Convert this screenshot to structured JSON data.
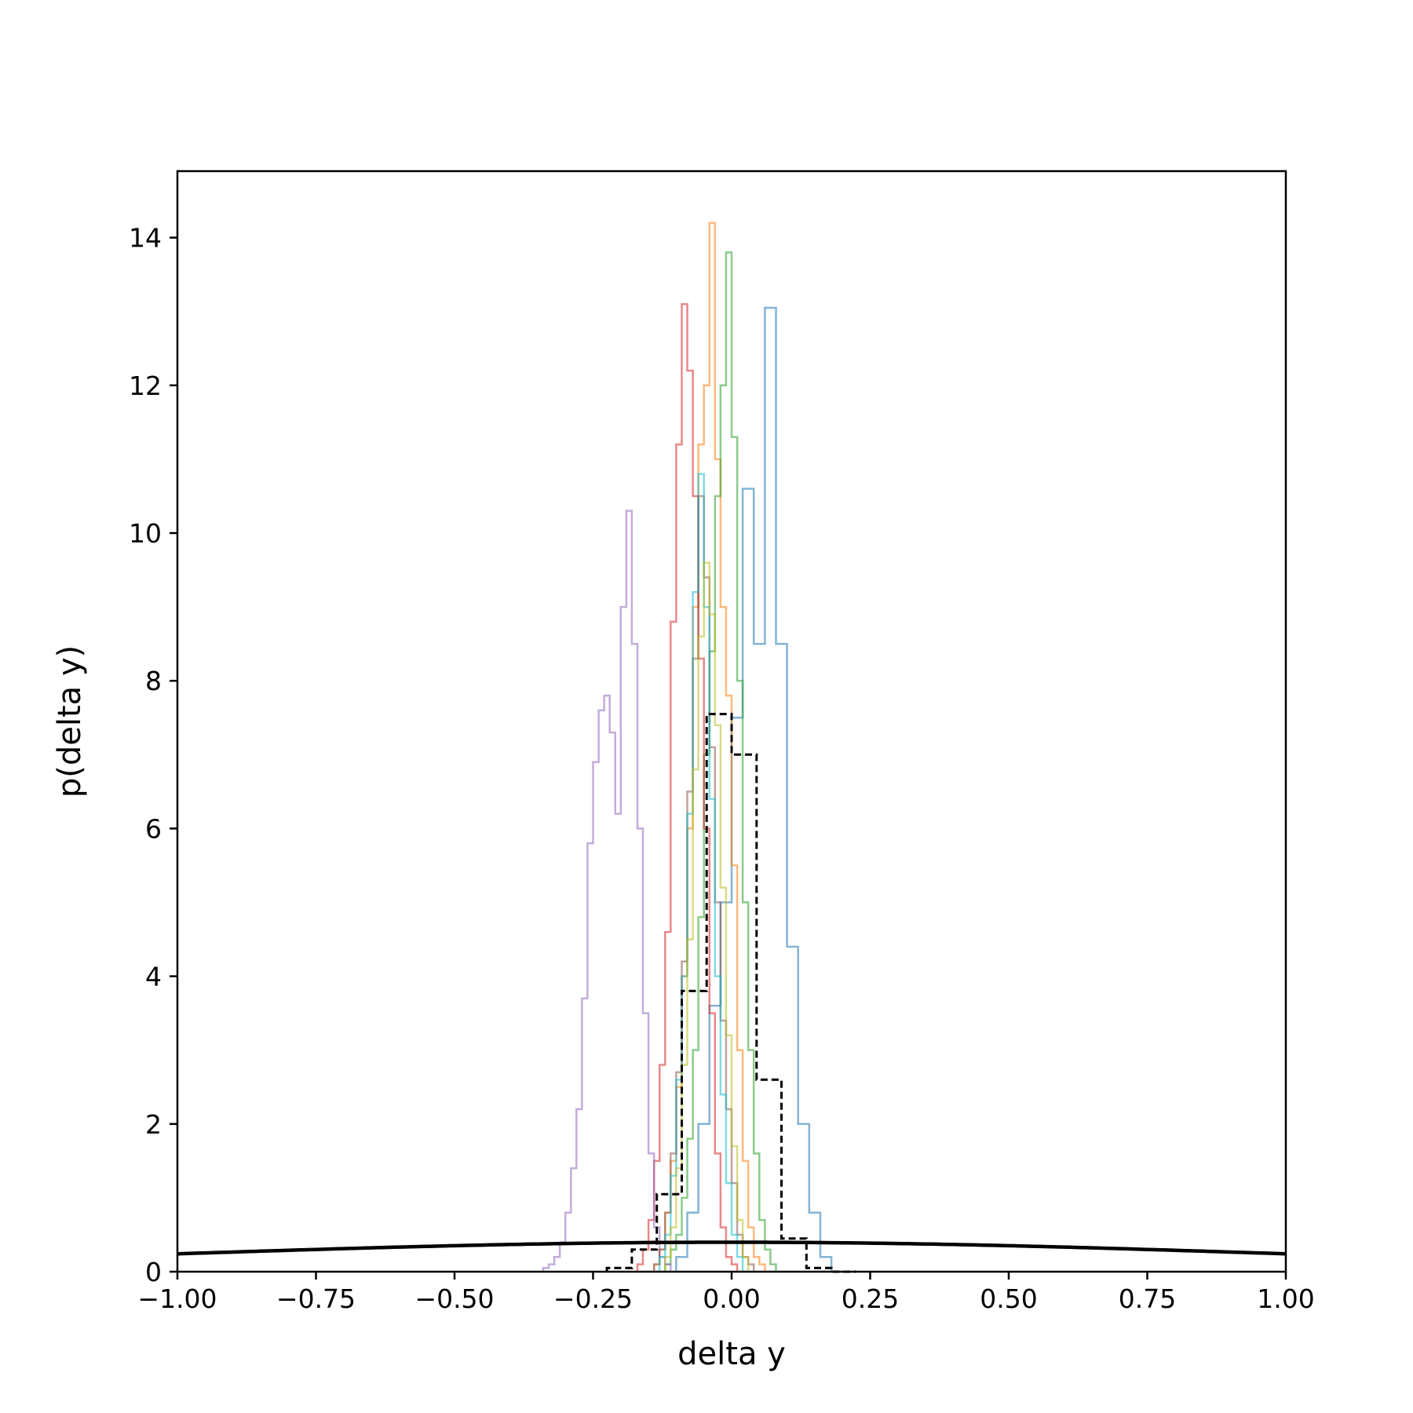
{
  "chart_data": {
    "type": "histogram",
    "title": "",
    "xlabel": "delta y",
    "ylabel": "p(delta y)",
    "xlim": [
      -1.0,
      1.0
    ],
    "ylim": [
      0,
      14.9
    ],
    "grid": false,
    "legend": "none",
    "x_ticks": [
      -1.0,
      -0.75,
      -0.5,
      -0.25,
      0.0,
      0.25,
      0.5,
      0.75,
      1.0
    ],
    "x_tick_labels": [
      "−1.00",
      "−0.75",
      "−0.50",
      "−0.25",
      "0.00",
      "0.25",
      "0.50",
      "0.75",
      "1.00"
    ],
    "y_ticks": [
      0,
      2,
      4,
      6,
      8,
      10,
      12,
      14
    ],
    "y_tick_labels": [
      "0",
      "2",
      "4",
      "6",
      "8",
      "10",
      "12",
      "14"
    ],
    "series": [
      {
        "color": "#1f77b4",
        "style": "step",
        "bin_width": 0.02,
        "edges_start": -0.1,
        "values": [
          0.2,
          0.8,
          2.0,
          3.6,
          5.0,
          7.5,
          10.6,
          8.5,
          13.05,
          8.5,
          4.4,
          2.0,
          0.8,
          0.2
        ]
      },
      {
        "color": "#ff7f0e",
        "style": "step",
        "bin_width": 0.01,
        "edges_start": -0.14,
        "values": [
          0.1,
          0.3,
          0.8,
          1.5,
          2.5,
          4.0,
          6.0,
          9.0,
          11.2,
          12.0,
          14.2,
          11.0,
          9.0,
          7.8,
          5.5,
          3.0,
          1.5,
          0.6,
          0.2,
          0.1
        ]
      },
      {
        "color": "#2ca02c",
        "style": "step",
        "bin_width": 0.01,
        "edges_start": -0.12,
        "values": [
          0.1,
          0.3,
          0.5,
          1.0,
          1.8,
          3.0,
          4.8,
          7.0,
          8.4,
          10.5,
          12.0,
          13.8,
          11.3,
          8.0,
          5.0,
          3.0,
          1.6,
          0.7,
          0.3,
          0.1
        ]
      },
      {
        "color": "#d62728",
        "style": "step",
        "bin_width": 0.01,
        "edges_start": -0.17,
        "values": [
          0.1,
          0.3,
          0.7,
          1.5,
          2.8,
          4.6,
          8.8,
          11.2,
          13.1,
          12.2,
          10.5,
          8.3,
          6.0,
          3.5,
          1.6,
          0.6,
          0.2,
          0.1
        ]
      },
      {
        "color": "#9467bd",
        "style": "step",
        "bin_width": 0.01,
        "edges_start": -0.34,
        "values": [
          0.05,
          0.1,
          0.2,
          0.4,
          0.8,
          1.4,
          2.2,
          3.7,
          5.8,
          6.9,
          7.6,
          7.8,
          7.3,
          6.2,
          9.0,
          10.3,
          8.5,
          6.0,
          3.5,
          1.6,
          0.6,
          0.2,
          0.1
        ]
      },
      {
        "color": "#8c564b",
        "style": "step",
        "bin_width": 0.01,
        "edges_start": -0.14,
        "values": [
          0.1,
          0.3,
          0.8,
          1.6,
          2.7,
          4.2,
          6.5,
          8.3,
          10.5,
          9.4,
          7.1,
          5.0,
          3.4,
          2.2,
          1.2,
          0.5,
          0.2,
          0.1
        ]
      },
      {
        "color": "#17becf",
        "style": "step",
        "bin_width": 0.01,
        "edges_start": -0.13,
        "values": [
          0.2,
          0.5,
          1.3,
          2.6,
          4.0,
          6.2,
          9.2,
          10.8,
          9.0,
          6.4,
          4.0,
          2.4,
          1.2,
          0.5,
          0.2
        ]
      },
      {
        "color": "#bcbd22",
        "style": "step",
        "bin_width": 0.01,
        "edges_start": -0.12,
        "values": [
          0.2,
          0.6,
          1.4,
          2.8,
          4.5,
          6.8,
          8.6,
          9.6,
          8.9,
          7.4,
          5.2,
          3.2,
          1.7,
          0.7,
          0.2
        ]
      },
      {
        "color": "#000000",
        "style": "dashed-step",
        "bin_width": 0.045,
        "edges_start": -0.225,
        "values": [
          0.05,
          0.3,
          1.05,
          3.8,
          7.55,
          7.0,
          2.6,
          0.45,
          0.05,
          0.0
        ]
      }
    ],
    "curve": {
      "color": "#000000",
      "type": "gaussian",
      "mean": 0.0,
      "sigma": 1.0,
      "x_range": [
        -1.0,
        1.0
      ]
    }
  }
}
